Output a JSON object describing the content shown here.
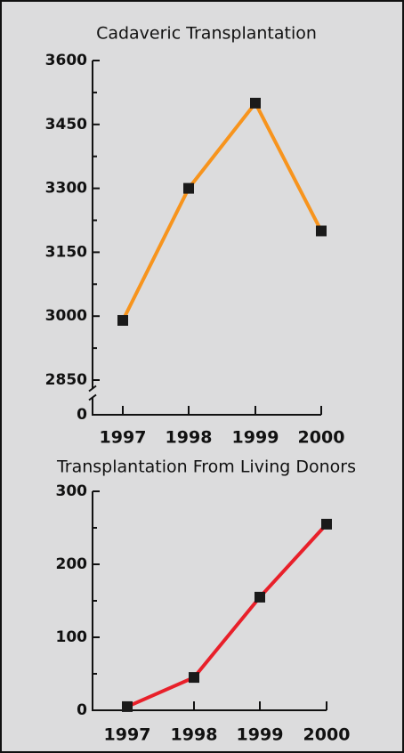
{
  "chart_data": [
    {
      "type": "line",
      "title": "Cadaveric Transplantation",
      "categories": [
        "1997",
        "1998",
        "1999",
        "2000"
      ],
      "series": [
        {
          "name": "Cadaveric",
          "color": "#f7941d",
          "values": [
            2990,
            3300,
            3500,
            3200
          ]
        }
      ],
      "ylim": [
        0,
        3600
      ],
      "yticks": [
        0,
        2850,
        3000,
        3150,
        3300,
        3450,
        3600
      ],
      "axis_break": [
        0,
        2850
      ]
    },
    {
      "type": "line",
      "title": "Transplantation From Living Donors",
      "categories": [
        "1997",
        "1998",
        "1999",
        "2000"
      ],
      "series": [
        {
          "name": "Living",
          "color": "#e8202a",
          "values": [
            5,
            45,
            155,
            255
          ]
        }
      ],
      "ylim": [
        0,
        300
      ],
      "yticks": [
        0,
        100,
        200,
        300
      ]
    }
  ]
}
